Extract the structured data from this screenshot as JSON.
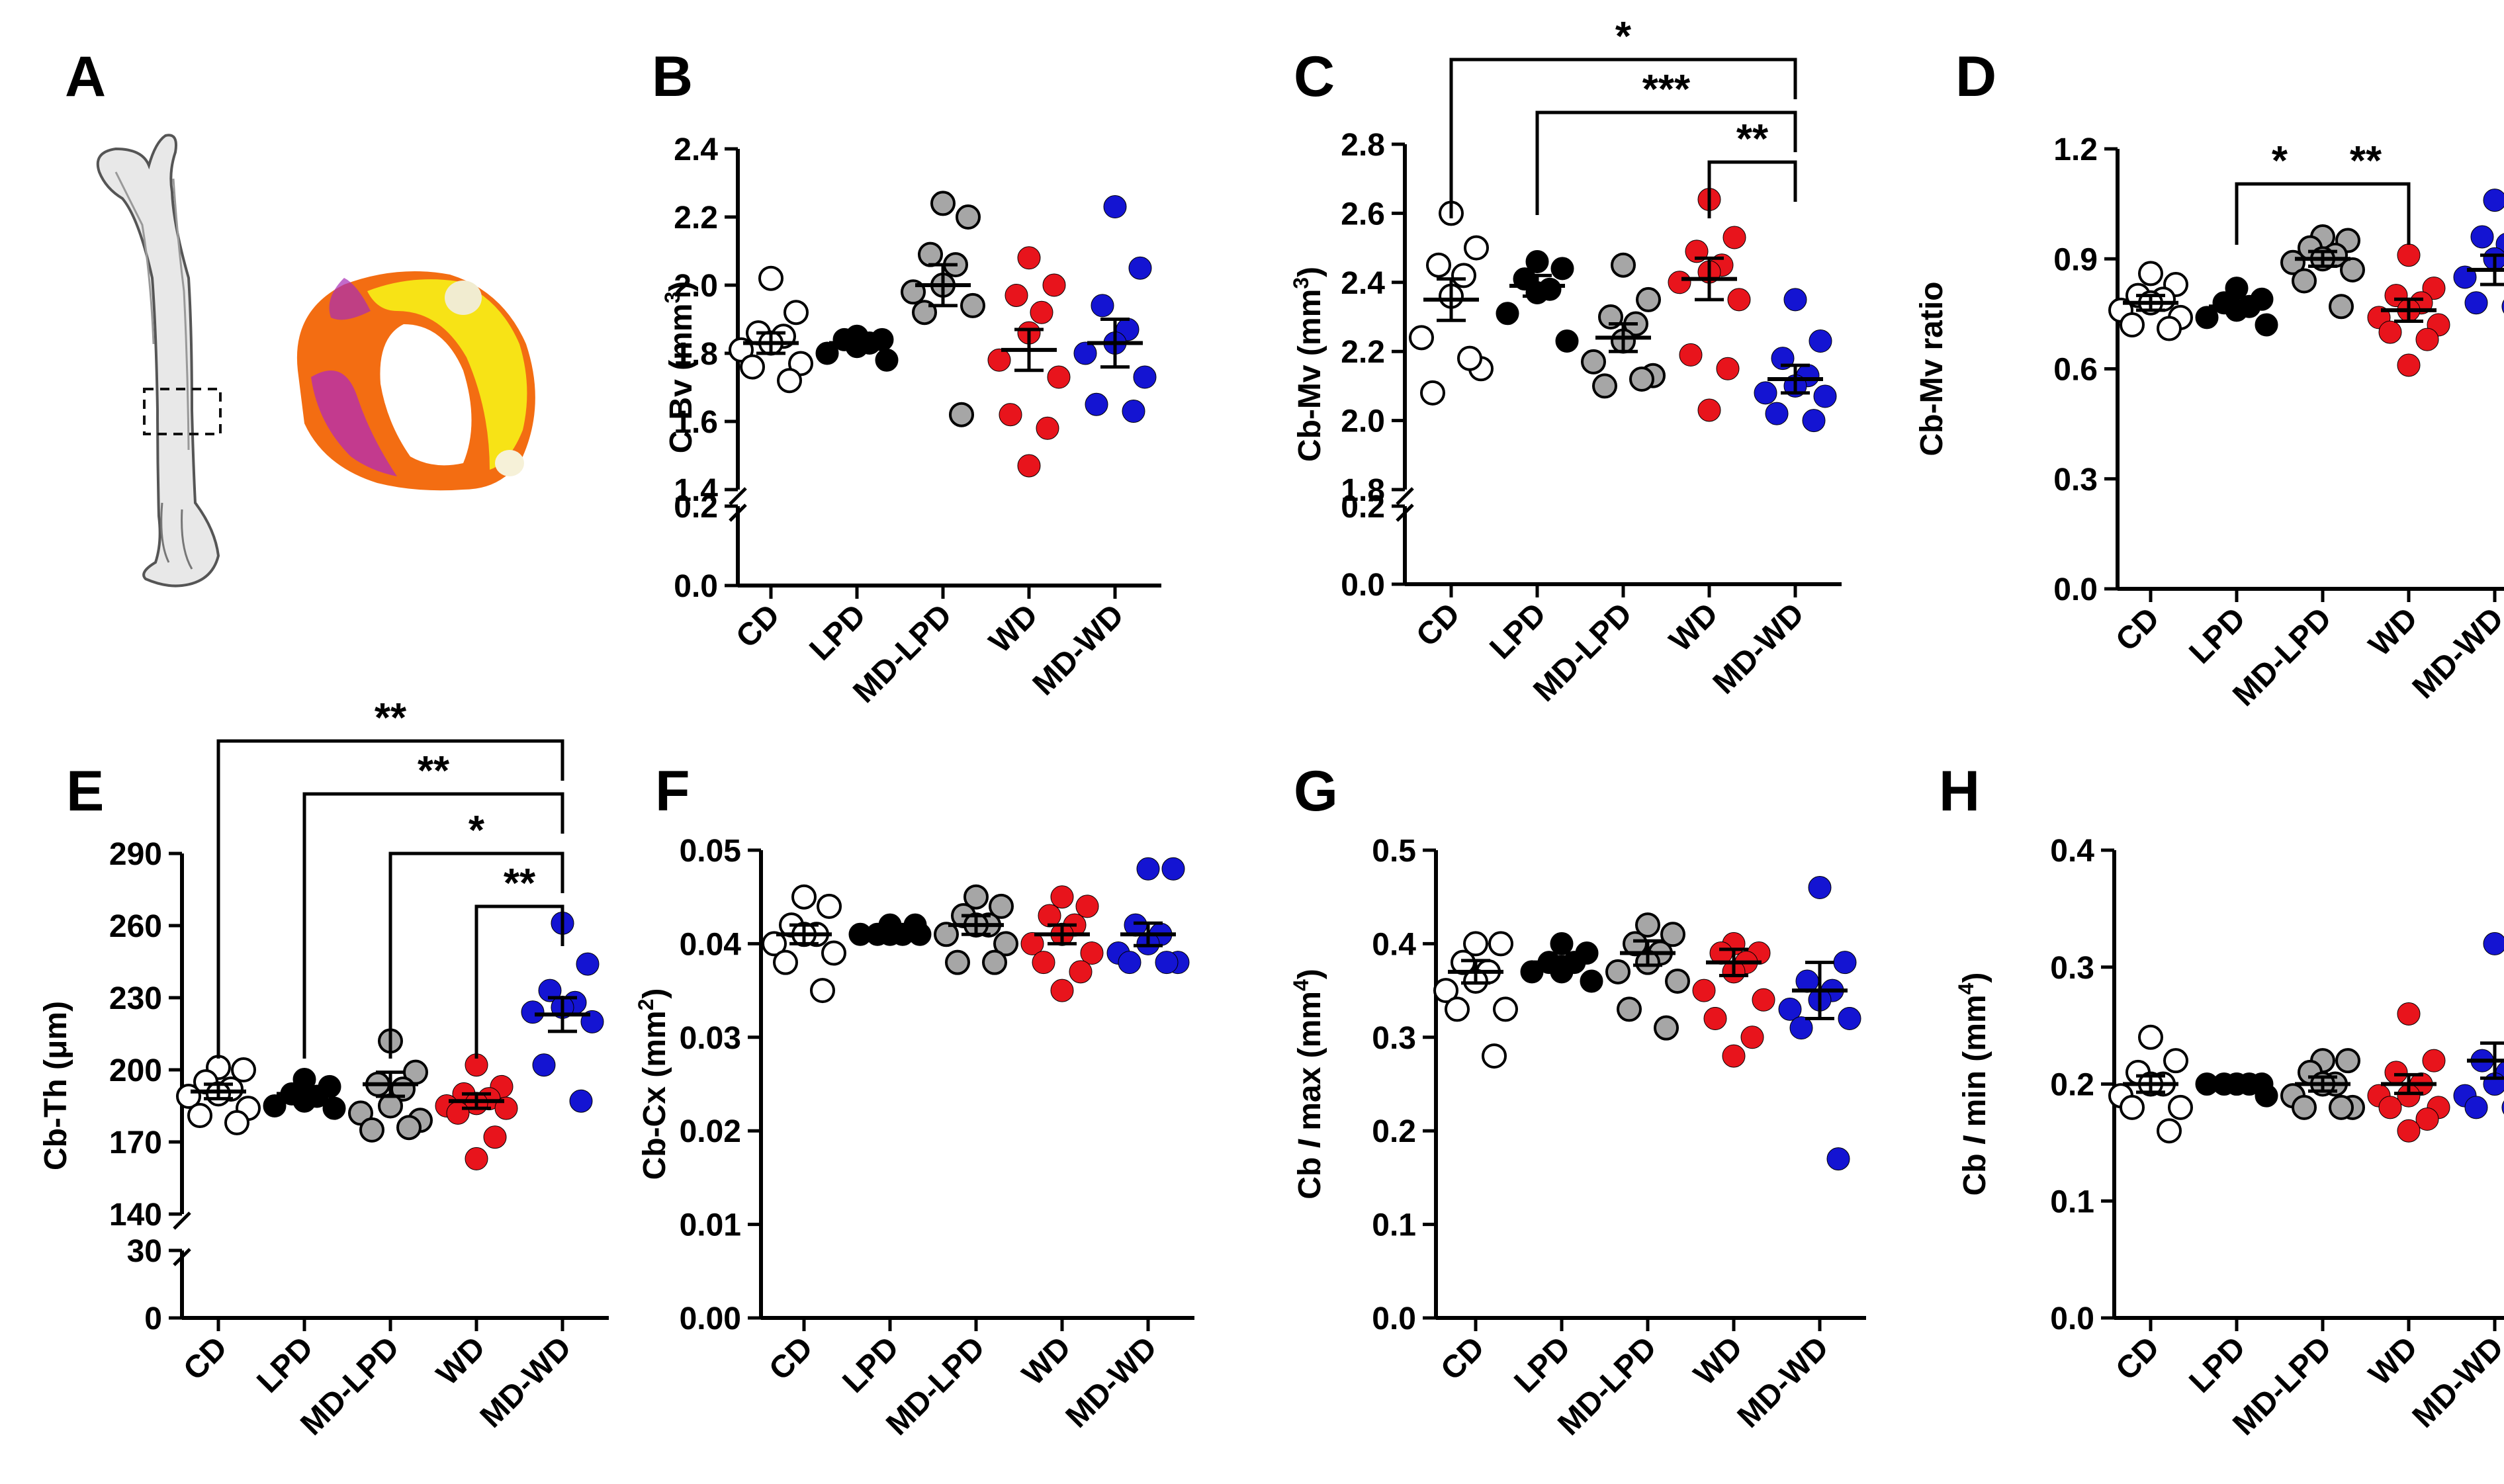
{
  "figure": {
    "groups": [
      "CD",
      "LPD",
      "MD-LPD",
      "WD",
      "MD-WD"
    ],
    "group_colors": [
      "#ffffff",
      "#000000",
      "#a6a6a6",
      "#e8141c",
      "#1414d2"
    ],
    "panel_a": {
      "letter": "A",
      "images": [
        "femur-icon",
        "cortical-ring-image"
      ]
    }
  },
  "chart_data": [
    {
      "panel": "B",
      "type": "scatter",
      "ylabel": "C-Bv (mm",
      "ylabel_sup": "3",
      "ylabel_tail": ")",
      "broken_axis": true,
      "upper_ticks": [
        "1.4",
        "1.6",
        "1.8",
        "2.0",
        "2.2",
        "2.4"
      ],
      "upper_range": [
        1.4,
        2.4
      ],
      "lower_ticks": [
        "0.0",
        "0.2"
      ],
      "lower_range": [
        0,
        0.2
      ],
      "categories": [
        "CD",
        "LPD",
        "MD-LPD",
        "WD",
        "MD-WD"
      ],
      "points": [
        [
          2.02,
          1.92,
          1.86,
          1.85,
          1.83,
          1.81,
          1.77,
          1.76,
          1.72
        ],
        [
          1.85,
          1.84,
          1.84,
          1.83,
          1.82,
          1.8,
          1.78
        ],
        [
          2.24,
          2.2,
          2.09,
          2.06,
          2.0,
          1.98,
          1.94,
          1.92,
          1.62
        ],
        [
          2.08,
          2.0,
          1.97,
          1.92,
          1.86,
          1.78,
          1.73,
          1.62,
          1.58,
          1.47
        ],
        [
          2.23,
          2.05,
          1.94,
          1.87,
          1.83,
          1.8,
          1.73,
          1.65,
          1.63
        ]
      ],
      "mean": [
        1.83,
        1.83,
        2.0,
        1.81,
        1.83
      ],
      "sem": [
        0.03,
        0.01,
        0.06,
        0.06,
        0.07
      ],
      "significance": []
    },
    {
      "panel": "C",
      "type": "scatter",
      "ylabel": "Cb-Mv (mm",
      "ylabel_sup": "3",
      "ylabel_tail": ")",
      "broken_axis": true,
      "upper_ticks": [
        "1.8",
        "2.0",
        "2.2",
        "2.4",
        "2.6",
        "2.8"
      ],
      "upper_range": [
        1.8,
        2.8
      ],
      "lower_ticks": [
        "0.0",
        "0.2"
      ],
      "lower_range": [
        0,
        0.2
      ],
      "categories": [
        "CD",
        "LPD",
        "MD-LPD",
        "WD",
        "MD-WD"
      ],
      "points": [
        [
          2.6,
          2.5,
          2.45,
          2.42,
          2.36,
          2.24,
          2.15,
          2.08,
          2.18
        ],
        [
          2.46,
          2.44,
          2.41,
          2.38,
          2.37,
          2.31,
          2.23
        ],
        [
          2.45,
          2.35,
          2.3,
          2.28,
          2.23,
          2.17,
          2.13,
          2.1,
          2.12
        ],
        [
          2.64,
          2.53,
          2.49,
          2.45,
          2.43,
          2.4,
          2.35,
          2.19,
          2.15,
          2.03
        ],
        [
          2.35,
          2.23,
          2.18,
          2.13,
          2.1,
          2.08,
          2.07,
          2.02,
          2.0
        ]
      ],
      "mean": [
        2.35,
        2.39,
        2.24,
        2.41,
        2.12
      ],
      "sem": [
        0.06,
        0.03,
        0.04,
        0.06,
        0.04
      ],
      "significance": [
        {
          "from": 0,
          "to": 4,
          "label": "*"
        },
        {
          "from": 1,
          "to": 4,
          "label": "***"
        },
        {
          "from": 3,
          "to": 4,
          "label": "**"
        }
      ]
    },
    {
      "panel": "D",
      "type": "scatter",
      "ylabel": "Cb-Mv ratio",
      "ylabel_sup": "",
      "ylabel_tail": "",
      "broken_axis": false,
      "ticks": [
        "0.0",
        "0.3",
        "0.6",
        "0.9",
        "1.2"
      ],
      "range": [
        0,
        1.2
      ],
      "categories": [
        "CD",
        "LPD",
        "MD-LPD",
        "WD",
        "MD-WD"
      ],
      "points": [
        [
          0.86,
          0.83,
          0.8,
          0.79,
          0.78,
          0.76,
          0.74,
          0.72,
          0.71
        ],
        [
          0.82,
          0.79,
          0.78,
          0.77,
          0.76,
          0.74,
          0.72
        ],
        [
          0.96,
          0.95,
          0.93,
          0.91,
          0.9,
          0.89,
          0.87,
          0.84,
          0.77
        ],
        [
          0.91,
          0.82,
          0.8,
          0.78,
          0.76,
          0.74,
          0.72,
          0.7,
          0.68,
          0.61
        ],
        [
          1.06,
          1.06,
          0.96,
          0.94,
          0.9,
          0.85,
          0.79,
          0.78,
          0.77
        ]
      ],
      "mean": [
        0.78,
        0.77,
        0.9,
        0.76,
        0.87
      ],
      "sem": [
        0.02,
        0.01,
        0.02,
        0.03,
        0.04
      ],
      "significance": [
        {
          "from": 1,
          "to": 2,
          "label": "*"
        },
        {
          "from": 2,
          "to": 3,
          "label": "**"
        }
      ]
    },
    {
      "panel": "E",
      "type": "scatter",
      "ylabel": "Cb-Th (μm)",
      "ylabel_sup": "",
      "ylabel_tail": "",
      "broken_axis": true,
      "upper_ticks": [
        "140",
        "170",
        "200",
        "230",
        "260",
        "290"
      ],
      "upper_range": [
        140,
        290
      ],
      "lower_ticks": [
        "0",
        "30"
      ],
      "lower_range": [
        0,
        30
      ],
      "categories": [
        "CD",
        "LPD",
        "MD-LPD",
        "WD",
        "MD-WD"
      ],
      "points": [
        [
          201,
          200,
          195,
          192,
          190,
          189,
          184,
          181,
          178
        ],
        [
          196,
          193,
          190,
          189,
          187,
          185,
          184
        ],
        [
          212,
          199,
          194,
          192,
          185,
          182,
          179,
          175,
          176
        ],
        [
          202,
          193,
          190,
          188,
          186,
          185,
          184,
          182,
          172,
          163
        ],
        [
          261,
          244,
          233,
          228,
          226,
          224,
          220,
          202,
          187
        ]
      ],
      "mean": [
        191,
        190,
        194,
        187,
        223
      ],
      "sem": [
        3,
        2,
        5,
        3,
        7
      ],
      "significance": [
        {
          "from": 0,
          "to": 4,
          "label": "**"
        },
        {
          "from": 1,
          "to": 4,
          "label": "**"
        },
        {
          "from": 2,
          "to": 4,
          "label": "*"
        },
        {
          "from": 3,
          "to": 4,
          "label": "**"
        }
      ]
    },
    {
      "panel": "F",
      "type": "scatter",
      "ylabel": "Cb-Cx (mm",
      "ylabel_sup": "2",
      "ylabel_tail": ")",
      "broken_axis": false,
      "ticks": [
        "0.00",
        "0.01",
        "0.02",
        "0.03",
        "0.04",
        "0.05"
      ],
      "range": [
        0,
        0.05
      ],
      "categories": [
        "CD",
        "LPD",
        "MD-LPD",
        "WD",
        "MD-WD"
      ],
      "points": [
        [
          0.045,
          0.044,
          0.042,
          0.041,
          0.041,
          0.04,
          0.039,
          0.038,
          0.035
        ],
        [
          0.042,
          0.042,
          0.041,
          0.041,
          0.041,
          0.041,
          0.041
        ],
        [
          0.045,
          0.044,
          0.043,
          0.042,
          0.042,
          0.041,
          0.04,
          0.038,
          0.038
        ],
        [
          0.045,
          0.044,
          0.043,
          0.042,
          0.041,
          0.04,
          0.039,
          0.038,
          0.037,
          0.035
        ],
        [
          0.048,
          0.048,
          0.042,
          0.041,
          0.04,
          0.039,
          0.038,
          0.038,
          0.038
        ]
      ],
      "mean": [
        0.041,
        0.041,
        0.042,
        0.041,
        0.041
      ],
      "sem": [
        0.001,
        0.0003,
        0.001,
        0.001,
        0.0012
      ],
      "significance": []
    },
    {
      "panel": "G",
      "type": "scatter",
      "ylabel": "Cb ",
      "ylabel_italic": "I",
      "ylabel_tail": " max (mm",
      "ylabel_sup": "4",
      "ylabel_end": ")",
      "broken_axis": false,
      "ticks": [
        "0.0",
        "0.1",
        "0.2",
        "0.3",
        "0.4",
        "0.5"
      ],
      "range": [
        0,
        0.5
      ],
      "categories": [
        "CD",
        "LPD",
        "MD-LPD",
        "WD",
        "MD-WD"
      ],
      "points": [
        [
          0.4,
          0.4,
          0.38,
          0.37,
          0.36,
          0.35,
          0.33,
          0.33,
          0.28
        ],
        [
          0.4,
          0.39,
          0.38,
          0.38,
          0.37,
          0.37,
          0.36
        ],
        [
          0.42,
          0.41,
          0.4,
          0.39,
          0.38,
          0.37,
          0.36,
          0.33,
          0.31
        ],
        [
          0.4,
          0.39,
          0.39,
          0.38,
          0.37,
          0.35,
          0.34,
          0.32,
          0.3,
          0.28
        ],
        [
          0.46,
          0.38,
          0.36,
          0.35,
          0.34,
          0.33,
          0.32,
          0.31,
          0.17
        ]
      ],
      "mean": [
        0.37,
        0.38,
        0.39,
        0.38,
        0.35
      ],
      "sem": [
        0.012,
        0.006,
        0.013,
        0.014,
        0.03
      ],
      "significance": []
    },
    {
      "panel": "H",
      "type": "scatter",
      "ylabel": "Cb ",
      "ylabel_italic": "I",
      "ylabel_tail": " min (mm",
      "ylabel_sup": "4",
      "ylabel_end": ")",
      "broken_axis": false,
      "ticks": [
        "0.0",
        "0.1",
        "0.2",
        "0.3",
        "0.4"
      ],
      "range": [
        0,
        0.4
      ],
      "categories": [
        "CD",
        "LPD",
        "MD-LPD",
        "WD",
        "MD-WD"
      ],
      "points": [
        [
          0.24,
          0.22,
          0.21,
          0.2,
          0.2,
          0.19,
          0.18,
          0.18,
          0.16
        ],
        [
          0.2,
          0.2,
          0.2,
          0.2,
          0.2,
          0.2,
          0.19
        ],
        [
          0.22,
          0.22,
          0.21,
          0.2,
          0.2,
          0.19,
          0.18,
          0.18,
          0.18
        ],
        [
          0.26,
          0.22,
          0.21,
          0.2,
          0.19,
          0.19,
          0.18,
          0.18,
          0.17,
          0.16
        ],
        [
          0.32,
          0.23,
          0.22,
          0.21,
          0.2,
          0.19,
          0.19,
          0.18,
          0.18
        ]
      ],
      "mean": [
        0.2,
        0.2,
        0.2,
        0.2,
        0.22
      ],
      "sem": [
        0.007,
        0.002,
        0.006,
        0.008,
        0.015
      ],
      "significance": []
    }
  ]
}
